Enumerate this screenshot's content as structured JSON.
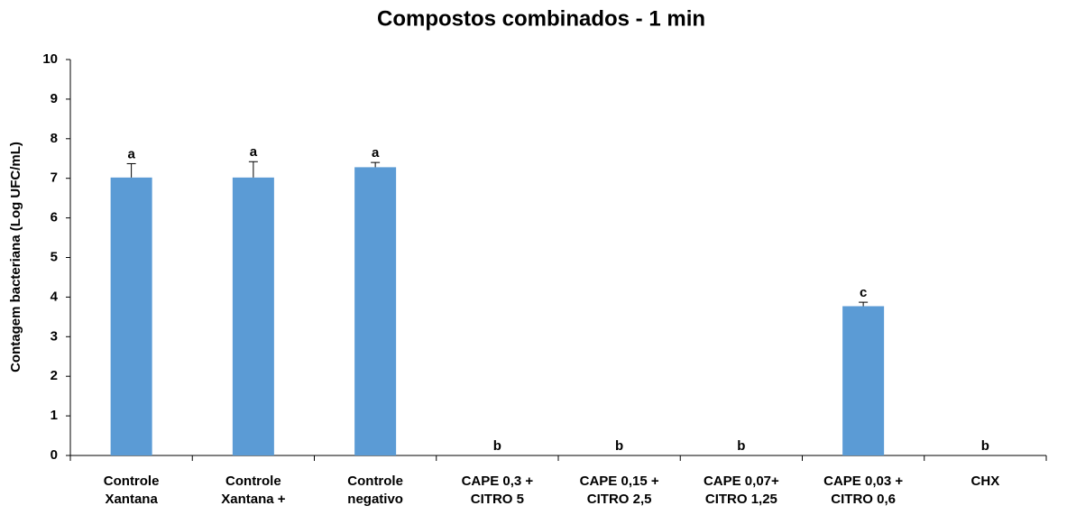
{
  "chart_data": {
    "type": "bar",
    "title": "Compostos combinados - 1 min",
    "y_label": "Contagem bacteriana (Log UFC/mL)",
    "categories": [
      [
        "Controle",
        "Xantana"
      ],
      [
        "Controle",
        "Xantana +"
      ],
      [
        "Controle",
        "negativo"
      ],
      [
        "CAPE 0,3 +",
        "CITRO 5"
      ],
      [
        "CAPE 0,15 +",
        "CITRO 2,5"
      ],
      [
        "CAPE 0,07+",
        "CITRO 1,25"
      ],
      [
        "CAPE 0,03 +",
        "CITRO 0,6"
      ],
      [
        "CHX"
      ]
    ],
    "values": [
      7.02,
      7.02,
      7.28,
      0,
      0,
      0,
      3.77,
      0
    ],
    "errors": [
      0.35,
      0.4,
      0.12,
      0,
      0,
      0,
      0.1,
      0
    ],
    "group_labels": [
      "a",
      "a",
      "a",
      "b",
      "b",
      "b",
      "c",
      "b"
    ],
    "color": "#5b9bd5",
    "ylim": [
      0,
      10
    ],
    "yticks": [
      0,
      1,
      2,
      3,
      4,
      5,
      6,
      7,
      8,
      9,
      10
    ],
    "grid": false
  }
}
